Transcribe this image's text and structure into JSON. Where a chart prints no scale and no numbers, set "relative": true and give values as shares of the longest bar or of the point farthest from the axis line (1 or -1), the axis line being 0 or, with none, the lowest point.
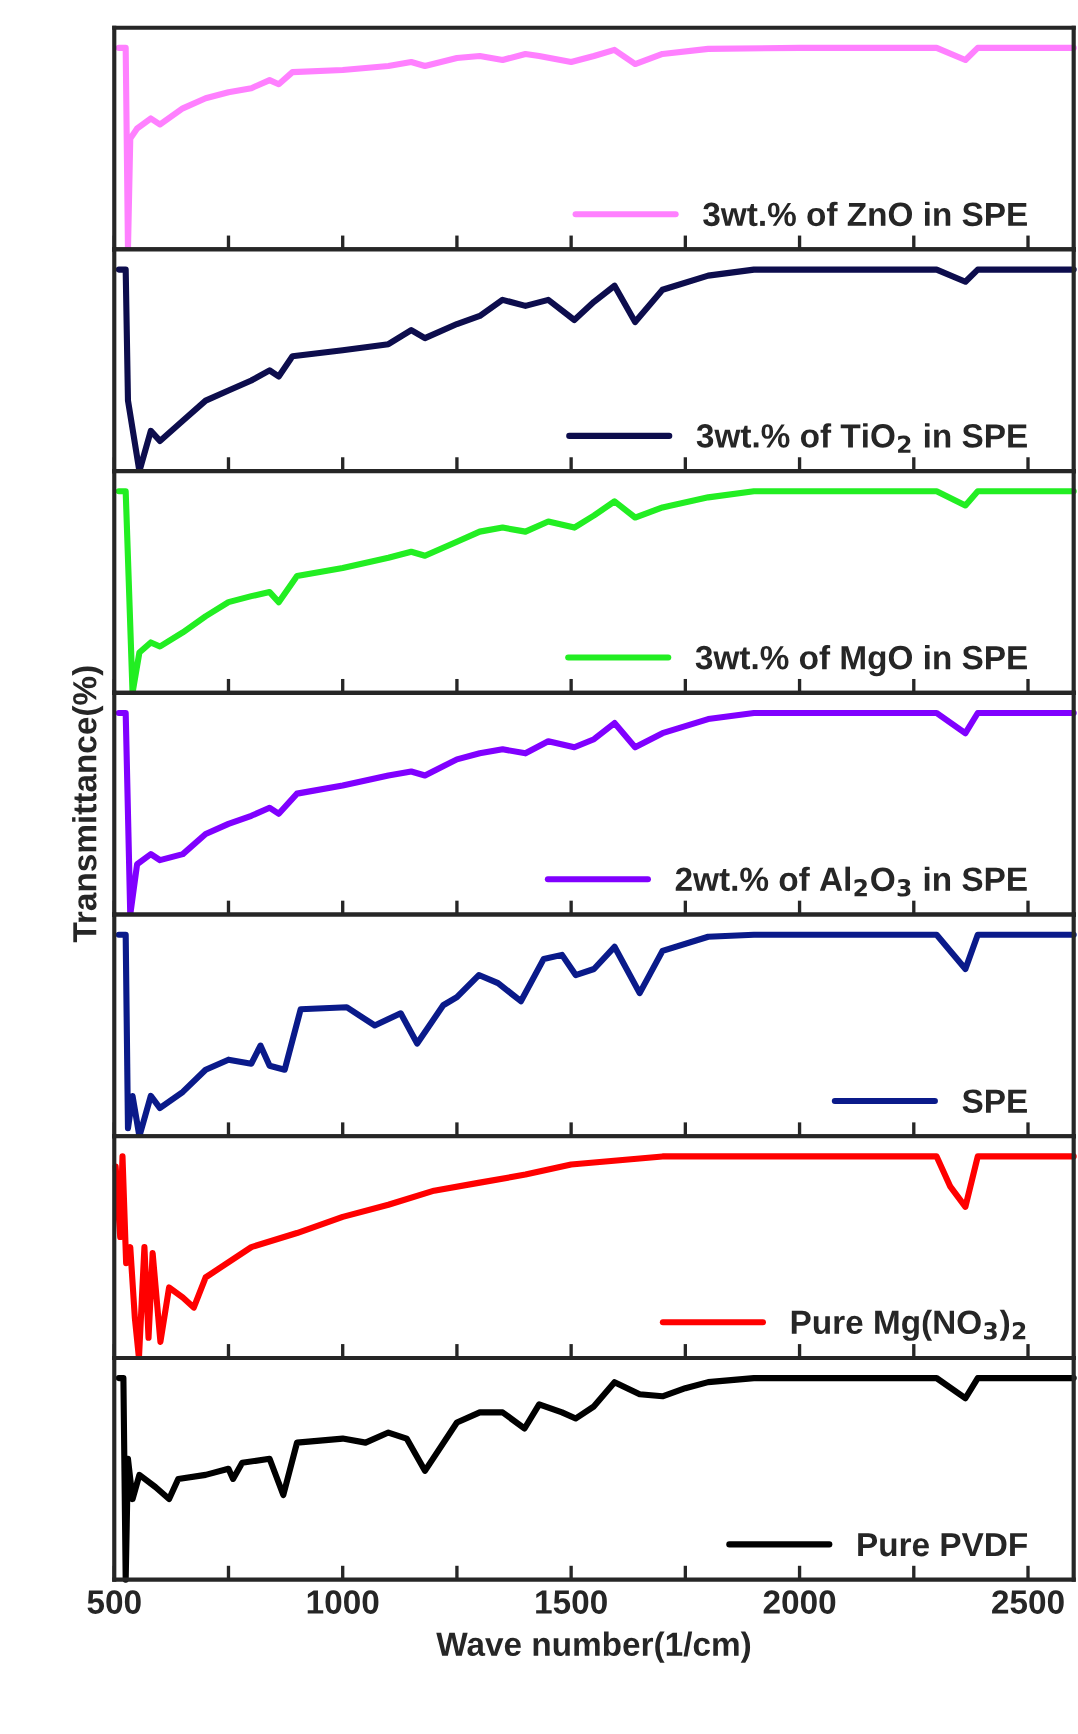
{
  "chart_data": [
    {
      "type": "line",
      "relative": true,
      "xlim": [
        500,
        2600
      ],
      "xticks": [
        500,
        {
          "value": 750,
          "label": null
        },
        1000,
        {
          "value": 1250,
          "label": null
        },
        1500,
        {
          "value": 1750,
          "label": null
        },
        2000,
        {
          "value": 2250,
          "label": null
        },
        2500
      ],
      "tick_labels": false,
      "legend": "bottom right",
      "grid": false,
      "series": [
        {
          "name": "3wt.% of ZnO in SPE",
          "color": "#ff80ff",
          "x": [
            510,
            525,
            530,
            535,
            550,
            580,
            600,
            650,
            700,
            750,
            800,
            840,
            860,
            890,
            1000,
            1100,
            1150,
            1180,
            1250,
            1300,
            1350,
            1400,
            1430,
            1500,
            1550,
            1595,
            1640,
            1700,
            1800,
            2000,
            2300,
            2363,
            2390,
            2600
          ],
          "values": [
            1,
            1,
            0,
            0.55,
            0.6,
            0.65,
            0.62,
            0.7,
            0.75,
            0.78,
            0.8,
            0.84,
            0.82,
            0.88,
            0.89,
            0.91,
            0.93,
            0.91,
            0.95,
            0.96,
            0.94,
            0.97,
            0.96,
            0.93,
            0.96,
            0.99,
            0.92,
            0.97,
            0.995,
            1,
            1,
            0.94,
            1,
            1
          ]
        }
      ]
    },
    {
      "type": "line",
      "relative": true,
      "xlim": [
        500,
        2600
      ],
      "xticks": [
        500,
        {
          "value": 750,
          "label": null
        },
        1000,
        {
          "value": 1250,
          "label": null
        },
        1500,
        {
          "value": 1750,
          "label": null
        },
        2000,
        {
          "value": 2250,
          "label": null
        },
        2500
      ],
      "tick_labels": false,
      "legend": "bottom right",
      "grid": false,
      "series": [
        {
          "name": "3wt.% of TiO$_{2}$ in SPE",
          "color": "#0d0d4d",
          "x": [
            510,
            525,
            530,
            555,
            580,
            600,
            650,
            700,
            750,
            800,
            840,
            860,
            890,
            1000,
            1100,
            1150,
            1180,
            1250,
            1300,
            1350,
            1400,
            1450,
            1507,
            1550,
            1595,
            1640,
            1700,
            1800,
            1900,
            2300,
            2363,
            2390,
            2600
          ],
          "values": [
            1,
            1,
            0.35,
            0,
            0.2,
            0.15,
            0.25,
            0.35,
            0.4,
            0.45,
            0.5,
            0.47,
            0.57,
            0.6,
            0.63,
            0.7,
            0.66,
            0.73,
            0.77,
            0.85,
            0.82,
            0.85,
            0.75,
            0.84,
            0.92,
            0.74,
            0.9,
            0.97,
            1,
            1,
            0.94,
            1,
            1
          ]
        }
      ]
    },
    {
      "type": "line",
      "relative": true,
      "xlim": [
        500,
        2600
      ],
      "xticks": [
        500,
        {
          "value": 750,
          "label": null
        },
        1000,
        {
          "value": 1250,
          "label": null
        },
        1500,
        {
          "value": 1750,
          "label": null
        },
        2000,
        {
          "value": 2250,
          "label": null
        },
        2500
      ],
      "tick_labels": false,
      "legend": "bottom right",
      "grid": false,
      "series": [
        {
          "name": "3wt.% of MgO in SPE",
          "color": "#22ee22",
          "x": [
            510,
            525,
            540,
            555,
            580,
            600,
            650,
            700,
            750,
            800,
            840,
            860,
            900,
            1000,
            1100,
            1150,
            1180,
            1250,
            1300,
            1350,
            1400,
            1450,
            1507,
            1550,
            1595,
            1640,
            1700,
            1800,
            1900,
            2300,
            2363,
            2390,
            2600
          ],
          "values": [
            1,
            1,
            0,
            0.2,
            0.25,
            0.23,
            0.3,
            0.38,
            0.45,
            0.48,
            0.5,
            0.45,
            0.58,
            0.62,
            0.67,
            0.7,
            0.68,
            0.75,
            0.8,
            0.82,
            0.8,
            0.85,
            0.82,
            0.88,
            0.95,
            0.87,
            0.92,
            0.97,
            1,
            1,
            0.93,
            1,
            1
          ]
        }
      ]
    },
    {
      "type": "line",
      "relative": true,
      "ylabel": "Transmittance(%)",
      "xlim": [
        500,
        2600
      ],
      "xticks": [
        500,
        {
          "value": 750,
          "label": null
        },
        1000,
        {
          "value": 1250,
          "label": null
        },
        1500,
        {
          "value": 1750,
          "label": null
        },
        2000,
        {
          "value": 2250,
          "label": null
        },
        2500
      ],
      "tick_labels": false,
      "legend": "bottom right",
      "grid": false,
      "series": [
        {
          "name": "2wt.% of Al$_{2}$O$_{3}$ in SPE",
          "color": "#8000ff",
          "x": [
            510,
            525,
            535,
            550,
            580,
            600,
            650,
            700,
            750,
            800,
            840,
            860,
            900,
            1000,
            1100,
            1150,
            1180,
            1250,
            1300,
            1350,
            1400,
            1450,
            1507,
            1550,
            1595,
            1640,
            1700,
            1800,
            1900,
            2300,
            2363,
            2390,
            2600
          ],
          "values": [
            1,
            1,
            0,
            0.25,
            0.3,
            0.27,
            0.3,
            0.4,
            0.45,
            0.49,
            0.53,
            0.5,
            0.6,
            0.64,
            0.69,
            0.71,
            0.69,
            0.77,
            0.8,
            0.82,
            0.8,
            0.86,
            0.83,
            0.87,
            0.95,
            0.83,
            0.9,
            0.97,
            1,
            1,
            0.9,
            1,
            1
          ]
        }
      ]
    },
    {
      "type": "line",
      "relative": true,
      "xlim": [
        500,
        2600
      ],
      "xticks": [
        500,
        {
          "value": 750,
          "label": null
        },
        1000,
        {
          "value": 1250,
          "label": null
        },
        1500,
        {
          "value": 1750,
          "label": null
        },
        2000,
        {
          "value": 2250,
          "label": null
        },
        2500
      ],
      "tick_labels": false,
      "legend": "bottom right",
      "grid": false,
      "series": [
        {
          "name": "SPE",
          "color": "#0a1a8a",
          "x": [
            510,
            525,
            530,
            540,
            555,
            580,
            600,
            650,
            700,
            750,
            800,
            820,
            840,
            873,
            908,
            1009,
            1070,
            1127,
            1163,
            1220,
            1250,
            1298,
            1340,
            1390,
            1440,
            1480,
            1510,
            1550,
            1595,
            1650,
            1700,
            1800,
            1900,
            2300,
            2363,
            2390,
            2600
          ],
          "values": [
            1,
            1,
            0.04,
            0.2,
            0,
            0.2,
            0.14,
            0.22,
            0.33,
            0.38,
            0.36,
            0.45,
            0.35,
            0.33,
            0.63,
            0.64,
            0.55,
            0.61,
            0.46,
            0.65,
            0.69,
            0.8,
            0.76,
            0.67,
            0.88,
            0.9,
            0.8,
            0.83,
            0.94,
            0.71,
            0.92,
            0.99,
            1,
            1,
            0.83,
            1,
            1
          ]
        }
      ]
    },
    {
      "type": "line",
      "relative": true,
      "xlim": [
        500,
        2600
      ],
      "xticks": [
        500,
        {
          "value": 750,
          "label": null
        },
        1000,
        {
          "value": 1250,
          "label": null
        },
        1500,
        {
          "value": 1750,
          "label": null
        },
        2000,
        {
          "value": 2250,
          "label": null
        },
        2500
      ],
      "tick_labels": false,
      "legend": "bottom right",
      "grid": false,
      "series": [
        {
          "name": "Pure Mg(NO$_{3}$)$_{2}$",
          "color": "#ff0000",
          "x": [
            503,
            513,
            518,
            526,
            535,
            545,
            554,
            566,
            575,
            584,
            601,
            620,
            650,
            674,
            700,
            800,
            900,
            1000,
            1100,
            1200,
            1300,
            1400,
            1500,
            1550,
            1600,
            1700,
            2300,
            2330,
            2363,
            2390,
            2600
          ],
          "values": [
            0.95,
            0.6,
            1,
            0.47,
            0.55,
            0.2,
            0,
            0.55,
            0.1,
            0.52,
            0.08,
            0.35,
            0.3,
            0.25,
            0.4,
            0.55,
            0.62,
            0.7,
            0.76,
            0.83,
            0.87,
            0.91,
            0.96,
            0.97,
            0.98,
            1,
            1,
            0.85,
            0.75,
            1,
            1
          ]
        }
      ]
    },
    {
      "type": "line",
      "relative": true,
      "xlabel": "Wave number(1/cm)",
      "xlim": [
        500,
        2600
      ],
      "xticks": [
        500,
        {
          "value": 750,
          "label": null
        },
        1000,
        {
          "value": 1250,
          "label": null
        },
        1500,
        {
          "value": 1750,
          "label": null
        },
        2000,
        {
          "value": 2250,
          "label": null
        },
        2500
      ],
      "tick_labels": "x",
      "legend": "bottom right",
      "grid": false,
      "series": [
        {
          "name": "Pure PVDF",
          "color": "#000000",
          "x": [
            510,
            520,
            525,
            530,
            540,
            555,
            590,
            620,
            640,
            700,
            750,
            760,
            780,
            840,
            870,
            900,
            1000,
            1050,
            1100,
            1140,
            1180,
            1250,
            1300,
            1350,
            1398,
            1430,
            1480,
            1510,
            1550,
            1595,
            1650,
            1700,
            1750,
            1800,
            1900,
            2300,
            2363,
            2390,
            2600
          ],
          "values": [
            1,
            1,
            0,
            0.6,
            0.4,
            0.52,
            0.46,
            0.4,
            0.5,
            0.52,
            0.55,
            0.5,
            0.58,
            0.6,
            0.42,
            0.68,
            0.7,
            0.68,
            0.73,
            0.7,
            0.54,
            0.78,
            0.83,
            0.83,
            0.75,
            0.87,
            0.83,
            0.8,
            0.86,
            0.98,
            0.92,
            0.91,
            0.95,
            0.98,
            1,
            1,
            0.9,
            1,
            1
          ]
        }
      ]
    }
  ]
}
